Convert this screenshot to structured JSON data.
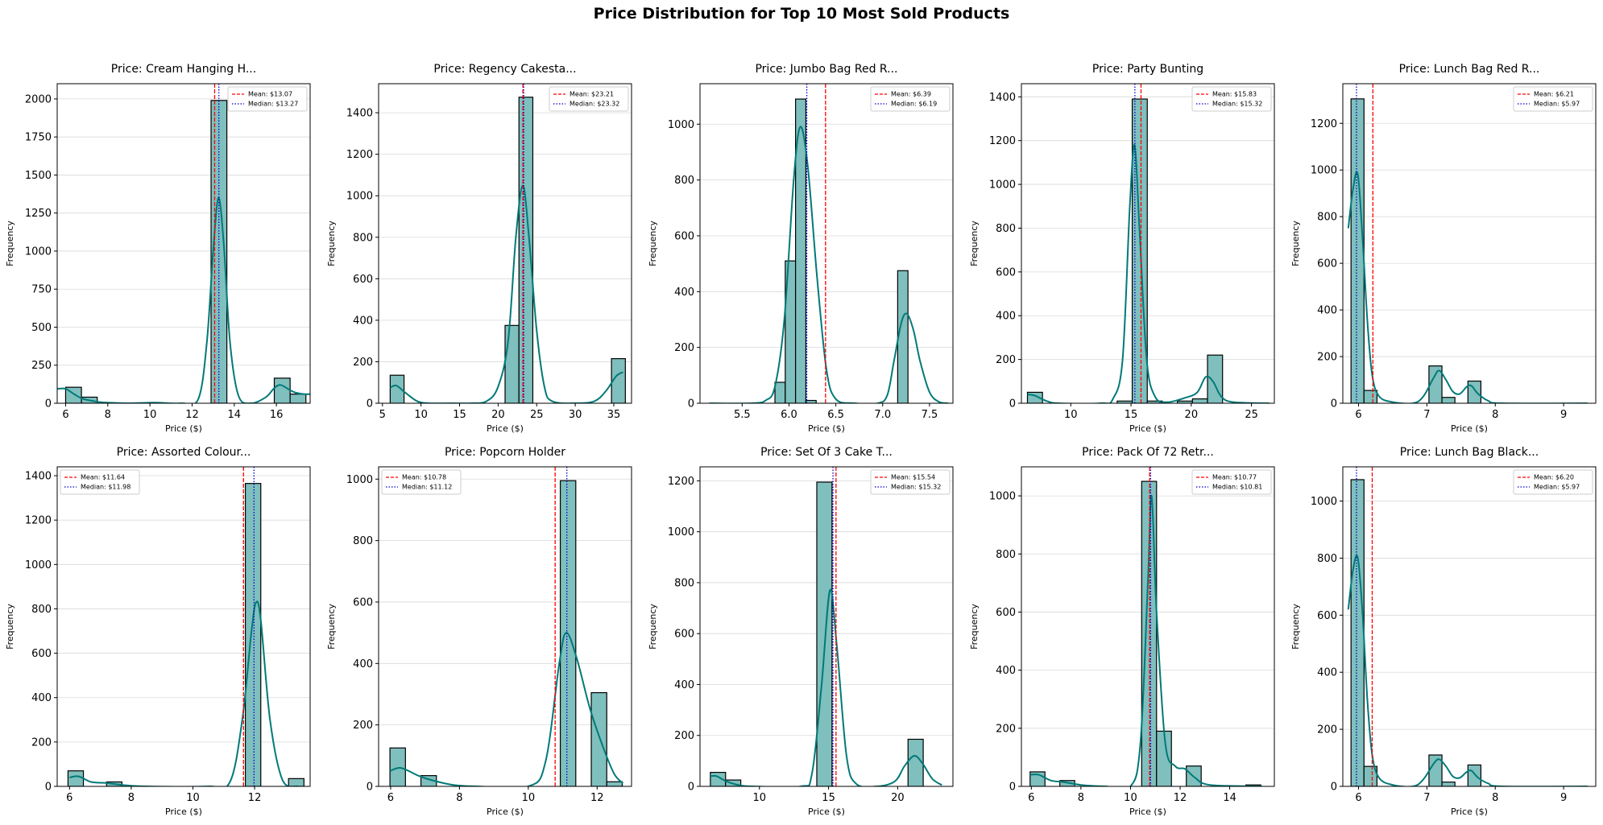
{
  "figure": {
    "title": "Price Distribution for Top 10 Most Sold Products"
  },
  "colors": {
    "bar_fill": "#7fbfbd",
    "bar_edge": "#000000",
    "kde": "#007a78",
    "mean": "#ff0000",
    "median": "#0000cc",
    "grid": "#d9d9d9"
  },
  "chart_data": [
    {
      "type": "bar",
      "title": "Price: Cream Hanging H...",
      "xlabel": "Price ($)",
      "ylabel": "Frequency",
      "xlim": [
        5.6,
        17.6
      ],
      "ylim": [
        0,
        2100
      ],
      "xticks": [
        6,
        8,
        10,
        12,
        14,
        16
      ],
      "yticks": [
        0,
        250,
        500,
        750,
        1000,
        1250,
        1500,
        1750,
        2000
      ],
      "grid": "y",
      "legend_loc": "upper right",
      "bin_width": 0.75,
      "bars": [
        [
          6.0,
          105
        ],
        [
          6.75,
          40
        ],
        [
          12.9,
          1990
        ],
        [
          15.9,
          165
        ],
        [
          16.65,
          60
        ]
      ],
      "kde": [
        [
          5.6,
          95
        ],
        [
          6.0,
          95
        ],
        [
          6.4,
          60
        ],
        [
          6.8,
          30
        ],
        [
          7.3,
          15
        ],
        [
          7.8,
          5
        ],
        [
          9,
          0
        ],
        [
          10.2,
          4
        ],
        [
          11.5,
          0
        ],
        [
          12.3,
          30
        ],
        [
          12.7,
          400
        ],
        [
          13.0,
          1000
        ],
        [
          13.25,
          1350
        ],
        [
          13.5,
          1050
        ],
        [
          13.8,
          400
        ],
        [
          14.2,
          50
        ],
        [
          14.8,
          0
        ],
        [
          15.5,
          40
        ],
        [
          15.9,
          100
        ],
        [
          16.2,
          120
        ],
        [
          16.6,
          90
        ],
        [
          16.9,
          70
        ],
        [
          17.3,
          60
        ],
        [
          17.6,
          60
        ]
      ],
      "mean": 13.07,
      "median": 13.27,
      "mean_label": "Mean: $13.07",
      "median_label": "Median: $13.27"
    },
    {
      "type": "bar",
      "title": "Price: Regency Cakesta...",
      "xlabel": "Price ($)",
      "ylabel": "Frequency",
      "xlim": [
        4.5,
        37.3
      ],
      "ylim": [
        0,
        1540
      ],
      "xticks": [
        5,
        10,
        15,
        20,
        25,
        30,
        35
      ],
      "yticks": [
        0,
        200,
        400,
        600,
        800,
        1000,
        1200,
        1400
      ],
      "grid": "y",
      "legend_loc": "upper right",
      "bin_width": 1.8,
      "bars": [
        [
          6.0,
          135
        ],
        [
          20.9,
          375
        ],
        [
          22.7,
          1475
        ],
        [
          34.7,
          215
        ]
      ],
      "kde": [
        [
          6.0,
          75
        ],
        [
          6.8,
          85
        ],
        [
          8,
          50
        ],
        [
          9.5,
          10
        ],
        [
          11,
          0
        ],
        [
          14,
          0
        ],
        [
          16.5,
          0
        ],
        [
          18.5,
          10
        ],
        [
          20,
          80
        ],
        [
          21.3,
          300
        ],
        [
          22.3,
          800
        ],
        [
          23.2,
          1050
        ],
        [
          24,
          800
        ],
        [
          25,
          350
        ],
        [
          26,
          80
        ],
        [
          27,
          10
        ],
        [
          30,
          0
        ],
        [
          32.5,
          10
        ],
        [
          34,
          60
        ],
        [
          35.3,
          130
        ],
        [
          36.2,
          150
        ]
      ],
      "mean": 23.21,
      "median": 23.32,
      "mean_label": "Mean: $23.21",
      "median_label": "Median: $23.32"
    },
    {
      "type": "bar",
      "title": "Price: Jumbo Bag Red R...",
      "xlabel": "Price ($)",
      "ylabel": "Frequency",
      "xlim": [
        5.05,
        7.75
      ],
      "ylim": [
        0,
        1145
      ],
      "xticks": [
        5.5,
        6.0,
        6.5,
        7.0,
        7.5
      ],
      "yticks": [
        0,
        200,
        400,
        600,
        800,
        1000
      ],
      "tick_decimals": 1,
      "grid": "y",
      "legend_loc": "upper right",
      "bin_width": 0.11,
      "bars": [
        [
          5.85,
          75
        ],
        [
          5.96,
          510
        ],
        [
          6.07,
          1090
        ],
        [
          6.18,
          10
        ],
        [
          7.16,
          475
        ]
      ],
      "kde": [
        [
          5.15,
          0
        ],
        [
          5.6,
          0
        ],
        [
          5.75,
          10
        ],
        [
          5.85,
          60
        ],
        [
          5.95,
          300
        ],
        [
          6.05,
          800
        ],
        [
          6.12,
          990
        ],
        [
          6.2,
          850
        ],
        [
          6.3,
          450
        ],
        [
          6.4,
          120
        ],
        [
          6.5,
          15
        ],
        [
          6.7,
          0
        ],
        [
          6.95,
          0
        ],
        [
          7.05,
          30
        ],
        [
          7.12,
          150
        ],
        [
          7.2,
          290
        ],
        [
          7.26,
          320
        ],
        [
          7.33,
          260
        ],
        [
          7.4,
          150
        ],
        [
          7.5,
          40
        ],
        [
          7.6,
          5
        ],
        [
          7.7,
          0
        ]
      ],
      "mean": 6.39,
      "median": 6.19,
      "mean_label": "Mean: $6.39",
      "median_label": "Median: $6.19"
    },
    {
      "type": "bar",
      "title": "Price: Party Bunting",
      "xlabel": "Price ($)",
      "ylabel": "Frequency",
      "xlim": [
        5.9,
        26.9
      ],
      "ylim": [
        0,
        1460
      ],
      "xticks": [
        10,
        15,
        20,
        25
      ],
      "yticks": [
        0,
        200,
        400,
        600,
        800,
        1000,
        1200,
        1400
      ],
      "grid": "y",
      "legend_loc": "upper right",
      "bin_width": 1.25,
      "bars": [
        [
          6.4,
          50
        ],
        [
          13.85,
          10
        ],
        [
          15.1,
          1390
        ],
        [
          16.35,
          10
        ],
        [
          18.85,
          10
        ],
        [
          20.1,
          20
        ],
        [
          21.35,
          220
        ]
      ],
      "kde": [
        [
          6.4,
          40
        ],
        [
          7,
          35
        ],
        [
          8,
          10
        ],
        [
          9,
          0
        ],
        [
          12.5,
          0
        ],
        [
          13.5,
          20
        ],
        [
          14.3,
          200
        ],
        [
          14.9,
          900
        ],
        [
          15.3,
          1180
        ],
        [
          15.7,
          800
        ],
        [
          16.3,
          200
        ],
        [
          17,
          30
        ],
        [
          18,
          5
        ],
        [
          19.5,
          25
        ],
        [
          20.5,
          50
        ],
        [
          21.2,
          120
        ],
        [
          21.8,
          100
        ],
        [
          22.5,
          30
        ],
        [
          23.5,
          5
        ],
        [
          26.5,
          0
        ]
      ],
      "mean": 15.83,
      "median": 15.32,
      "mean_label": "Mean: $15.83",
      "median_label": "Median: $15.32"
    },
    {
      "type": "bar",
      "title": "Price: Lunch Bag Red R...",
      "xlabel": "Price ($)",
      "ylabel": "Frequency",
      "xlim": [
        5.77,
        9.47
      ],
      "ylim": [
        0,
        1370
      ],
      "xticks": [
        6,
        7,
        8,
        9
      ],
      "yticks": [
        0,
        200,
        400,
        600,
        800,
        1000,
        1200
      ],
      "grid": "y",
      "legend_loc": "upper right",
      "bin_width": 0.19,
      "bars": [
        [
          5.89,
          1305
        ],
        [
          6.08,
          55
        ],
        [
          7.03,
          160
        ],
        [
          7.22,
          25
        ],
        [
          7.6,
          95
        ]
      ],
      "kde": [
        [
          5.85,
          750
        ],
        [
          5.92,
          920
        ],
        [
          5.99,
          980
        ],
        [
          6.06,
          700
        ],
        [
          6.13,
          350
        ],
        [
          6.2,
          120
        ],
        [
          6.3,
          30
        ],
        [
          6.5,
          5
        ],
        [
          6.8,
          0
        ],
        [
          6.95,
          30
        ],
        [
          7.1,
          110
        ],
        [
          7.18,
          140
        ],
        [
          7.28,
          100
        ],
        [
          7.38,
          50
        ],
        [
          7.48,
          40
        ],
        [
          7.58,
          70
        ],
        [
          7.65,
          75
        ],
        [
          7.75,
          40
        ],
        [
          7.9,
          10
        ],
        [
          8.1,
          0
        ],
        [
          9.35,
          0
        ]
      ],
      "mean": 6.21,
      "median": 5.97,
      "mean_label": "Mean: $6.21",
      "median_label": "Median: $5.97"
    },
    {
      "type": "bar",
      "title": "Price: Assorted Colour...",
      "xlabel": "Price ($)",
      "ylabel": "Frequency",
      "xlim": [
        5.6,
        13.8
      ],
      "ylim": [
        0,
        1440
      ],
      "xticks": [
        6,
        8,
        10,
        12
      ],
      "yticks": [
        0,
        200,
        400,
        600,
        800,
        1000,
        1200,
        1400
      ],
      "grid": "y",
      "legend_loc": "upper left",
      "bin_width": 0.5,
      "bars": [
        [
          5.95,
          70
        ],
        [
          7.2,
          20
        ],
        [
          11.7,
          1365
        ],
        [
          13.1,
          35
        ]
      ],
      "kde": [
        [
          6.0,
          40
        ],
        [
          6.3,
          45
        ],
        [
          6.7,
          20
        ],
        [
          7.2,
          15
        ],
        [
          7.8,
          5
        ],
        [
          8.5,
          0
        ],
        [
          10.5,
          0
        ],
        [
          11.2,
          20
        ],
        [
          11.6,
          300
        ],
        [
          11.9,
          700
        ],
        [
          12.05,
          830
        ],
        [
          12.2,
          750
        ],
        [
          12.5,
          300
        ],
        [
          12.9,
          30
        ],
        [
          13.4,
          0
        ]
      ],
      "mean": 11.64,
      "median": 11.98,
      "mean_label": "Mean: $11.64",
      "median_label": "Median: $11.98"
    },
    {
      "type": "bar",
      "title": "Price: Popcorn Holder",
      "xlabel": "Price ($)",
      "ylabel": "Frequency",
      "xlim": [
        5.65,
        13.0
      ],
      "ylim": [
        0,
        1040
      ],
      "xticks": [
        6,
        8,
        10,
        12
      ],
      "yticks": [
        0,
        200,
        400,
        600,
        800,
        1000
      ],
      "grid": "y",
      "legend_loc": "upper left",
      "bin_width": 0.45,
      "bars": [
        [
          5.98,
          125
        ],
        [
          6.88,
          35
        ],
        [
          10.93,
          995
        ],
        [
          11.83,
          305
        ],
        [
          12.28,
          15
        ]
      ],
      "kde": [
        [
          5.98,
          50
        ],
        [
          6.3,
          60
        ],
        [
          6.8,
          35
        ],
        [
          7.2,
          20
        ],
        [
          7.8,
          5
        ],
        [
          8.5,
          0
        ],
        [
          10,
          0
        ],
        [
          10.5,
          80
        ],
        [
          10.9,
          400
        ],
        [
          11.1,
          500
        ],
        [
          11.4,
          420
        ],
        [
          11.8,
          250
        ],
        [
          12.2,
          120
        ],
        [
          12.5,
          40
        ],
        [
          12.75,
          10
        ]
      ],
      "mean": 10.78,
      "median": 11.12,
      "mean_label": "Mean: $10.78",
      "median_label": "Median: $11.12"
    },
    {
      "type": "bar",
      "title": "Price: Set Of 3 Cake T...",
      "xlabel": "Price ($)",
      "ylabel": "Frequency",
      "xlim": [
        5.7,
        24.0
      ],
      "ylim": [
        0,
        1255
      ],
      "xticks": [
        10,
        15,
        20
      ],
      "yticks": [
        0,
        200,
        400,
        600,
        800,
        1000,
        1200
      ],
      "grid": "y",
      "legend_loc": "upper right",
      "bin_width": 1.1,
      "bars": [
        [
          6.45,
          55
        ],
        [
          7.55,
          25
        ],
        [
          14.15,
          1195
        ],
        [
          20.75,
          185
        ]
      ],
      "kde": [
        [
          6.45,
          40
        ],
        [
          6.9,
          40
        ],
        [
          7.6,
          20
        ],
        [
          8.5,
          5
        ],
        [
          9.5,
          0
        ],
        [
          13,
          0
        ],
        [
          13.8,
          50
        ],
        [
          14.5,
          400
        ],
        [
          15.1,
          770
        ],
        [
          15.6,
          550
        ],
        [
          16.3,
          120
        ],
        [
          17,
          10
        ],
        [
          18.5,
          0
        ],
        [
          19.8,
          20
        ],
        [
          20.5,
          80
        ],
        [
          21.2,
          120
        ],
        [
          21.8,
          90
        ],
        [
          22.5,
          30
        ],
        [
          23.2,
          5
        ]
      ],
      "mean": 15.54,
      "median": 15.32,
      "mean_label": "Mean: $15.54",
      "median_label": "Median: $15.32"
    },
    {
      "type": "bar",
      "title": "Price: Pack Of 72 Retr...",
      "xlabel": "Price ($)",
      "ylabel": "Frequency",
      "xlim": [
        5.6,
        15.8
      ],
      "ylim": [
        0,
        1100
      ],
      "xticks": [
        6,
        8,
        10,
        12,
        14
      ],
      "yticks": [
        0,
        200,
        400,
        600,
        800,
        1000
      ],
      "grid": "y",
      "legend_loc": "upper right",
      "bin_width": 0.6,
      "bars": [
        [
          5.95,
          50
        ],
        [
          7.15,
          20
        ],
        [
          10.45,
          1050
        ],
        [
          11.05,
          190
        ],
        [
          12.25,
          70
        ],
        [
          14.65,
          5
        ]
      ],
      "kde": [
        [
          5.95,
          40
        ],
        [
          6.3,
          40
        ],
        [
          6.8,
          20
        ],
        [
          7.3,
          15
        ],
        [
          8,
          5
        ],
        [
          9,
          0
        ],
        [
          10,
          0
        ],
        [
          10.4,
          150
        ],
        [
          10.7,
          700
        ],
        [
          10.85,
          1000
        ],
        [
          11.05,
          600
        ],
        [
          11.4,
          150
        ],
        [
          11.8,
          70
        ],
        [
          12.2,
          60
        ],
        [
          12.6,
          30
        ],
        [
          13.2,
          5
        ],
        [
          15.3,
          0
        ]
      ],
      "mean": 10.77,
      "median": 10.81,
      "mean_label": "Mean: $10.77",
      "median_label": "Median: $10.81"
    },
    {
      "type": "bar",
      "title": "Price: Lunch Bag Black...",
      "xlabel": "Price ($)",
      "ylabel": "Frequency",
      "xlim": [
        5.77,
        9.47
      ],
      "ylim": [
        0,
        1120
      ],
      "xticks": [
        6,
        7,
        8,
        9
      ],
      "yticks": [
        0,
        200,
        400,
        600,
        800,
        1000
      ],
      "grid": "y",
      "legend_loc": "upper right",
      "bin_width": 0.19,
      "bars": [
        [
          5.89,
          1075
        ],
        [
          6.08,
          70
        ],
        [
          7.03,
          110
        ],
        [
          7.22,
          15
        ],
        [
          7.6,
          75
        ]
      ],
      "kde": [
        [
          5.85,
          620
        ],
        [
          5.92,
          760
        ],
        [
          5.99,
          800
        ],
        [
          6.06,
          600
        ],
        [
          6.13,
          300
        ],
        [
          6.2,
          110
        ],
        [
          6.3,
          30
        ],
        [
          6.5,
          5
        ],
        [
          6.8,
          0
        ],
        [
          6.95,
          25
        ],
        [
          7.1,
          80
        ],
        [
          7.18,
          95
        ],
        [
          7.28,
          70
        ],
        [
          7.38,
          35
        ],
        [
          7.48,
          30
        ],
        [
          7.58,
          50
        ],
        [
          7.65,
          55
        ],
        [
          7.75,
          30
        ],
        [
          7.9,
          10
        ],
        [
          8.1,
          0
        ],
        [
          9.35,
          0
        ]
      ],
      "mean": 6.2,
      "median": 5.97,
      "mean_label": "Mean: $6.20",
      "median_label": "Median: $5.97"
    }
  ]
}
